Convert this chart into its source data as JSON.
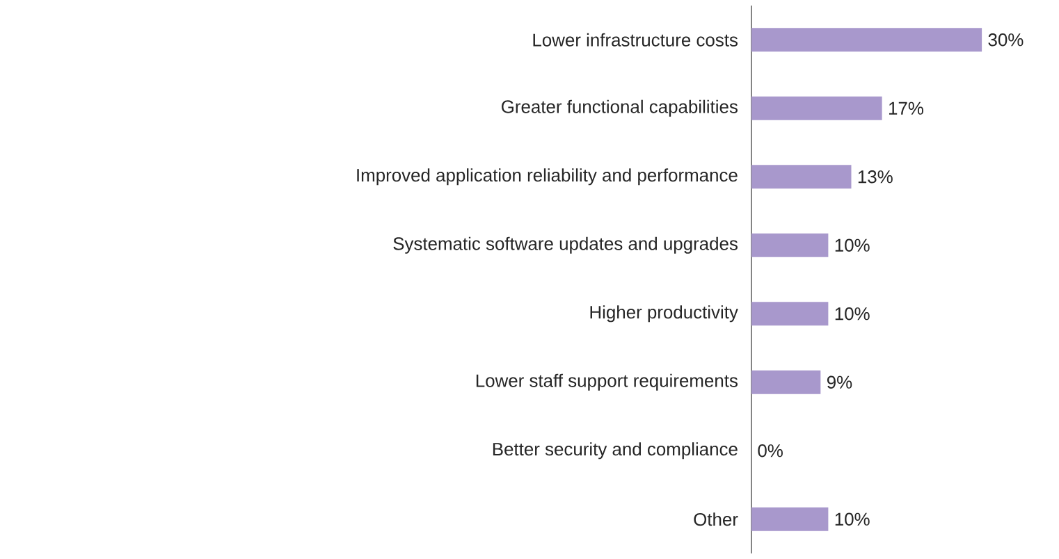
{
  "chart_data": {
    "type": "bar",
    "orientation": "horizontal",
    "categories": [
      "Lower infrastructure costs",
      "Greater functional capabilities",
      "Improved application reliability and performance",
      "Systematic software updates and upgrades",
      "Higher productivity",
      "Lower staff support requirements",
      "Better security and compliance",
      "Other"
    ],
    "values": [
      30,
      17,
      13,
      10,
      10,
      9,
      0,
      10
    ],
    "value_labels": [
      "30%",
      "17%",
      "13%",
      "10%",
      "10%",
      "9%",
      "0%",
      "10%"
    ],
    "color": "#a898cc"
  }
}
